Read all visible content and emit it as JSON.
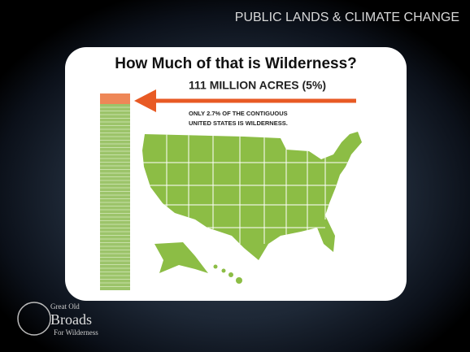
{
  "header": {
    "title": "PUBLIC LANDS & CLIMATE CHANGE"
  },
  "slide": {
    "title": "How Much of that is Wilderness?",
    "headline": "111 MILLION ACRES (5%)",
    "note_lines": [
      "ONLY 2.7% OF THE CONTIGUOUS",
      "UNITED STATES IS WILDERNESS."
    ]
  },
  "logo": {
    "lines": [
      "Great Old",
      "Broads",
      "For Wilderness"
    ]
  }
}
